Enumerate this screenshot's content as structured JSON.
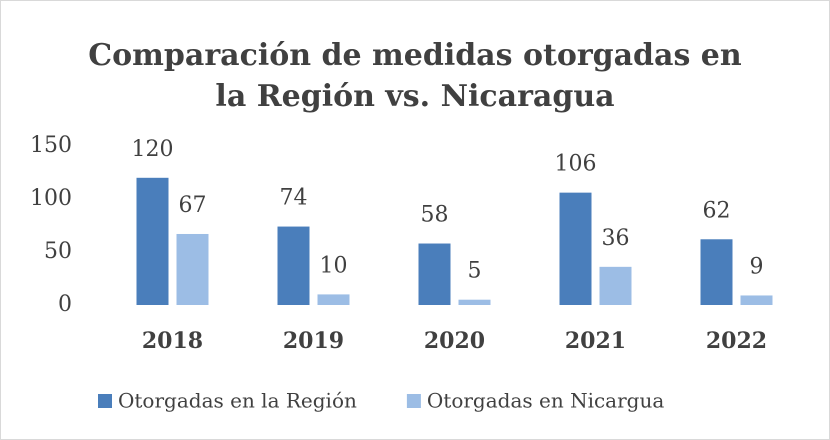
{
  "chart_data": {
    "type": "bar",
    "title": [
      "Comparación de medidas otorgadas en",
      "la Región vs. Nicaragua"
    ],
    "categories": [
      "2018",
      "2019",
      "2020",
      "2021",
      "2022"
    ],
    "series": [
      {
        "name": "Otorgadas en la Región",
        "color": "#4a7ebb",
        "values": [
          120,
          74,
          58,
          106,
          62
        ]
      },
      {
        "name": "Otorgadas en Nicargua",
        "color": "#9cbde5",
        "values": [
          67,
          10,
          5,
          36,
          9
        ]
      }
    ],
    "ylim": [
      0,
      150
    ],
    "yticks": [
      0,
      50,
      100,
      150
    ],
    "grid": false,
    "legend": "bottom"
  }
}
